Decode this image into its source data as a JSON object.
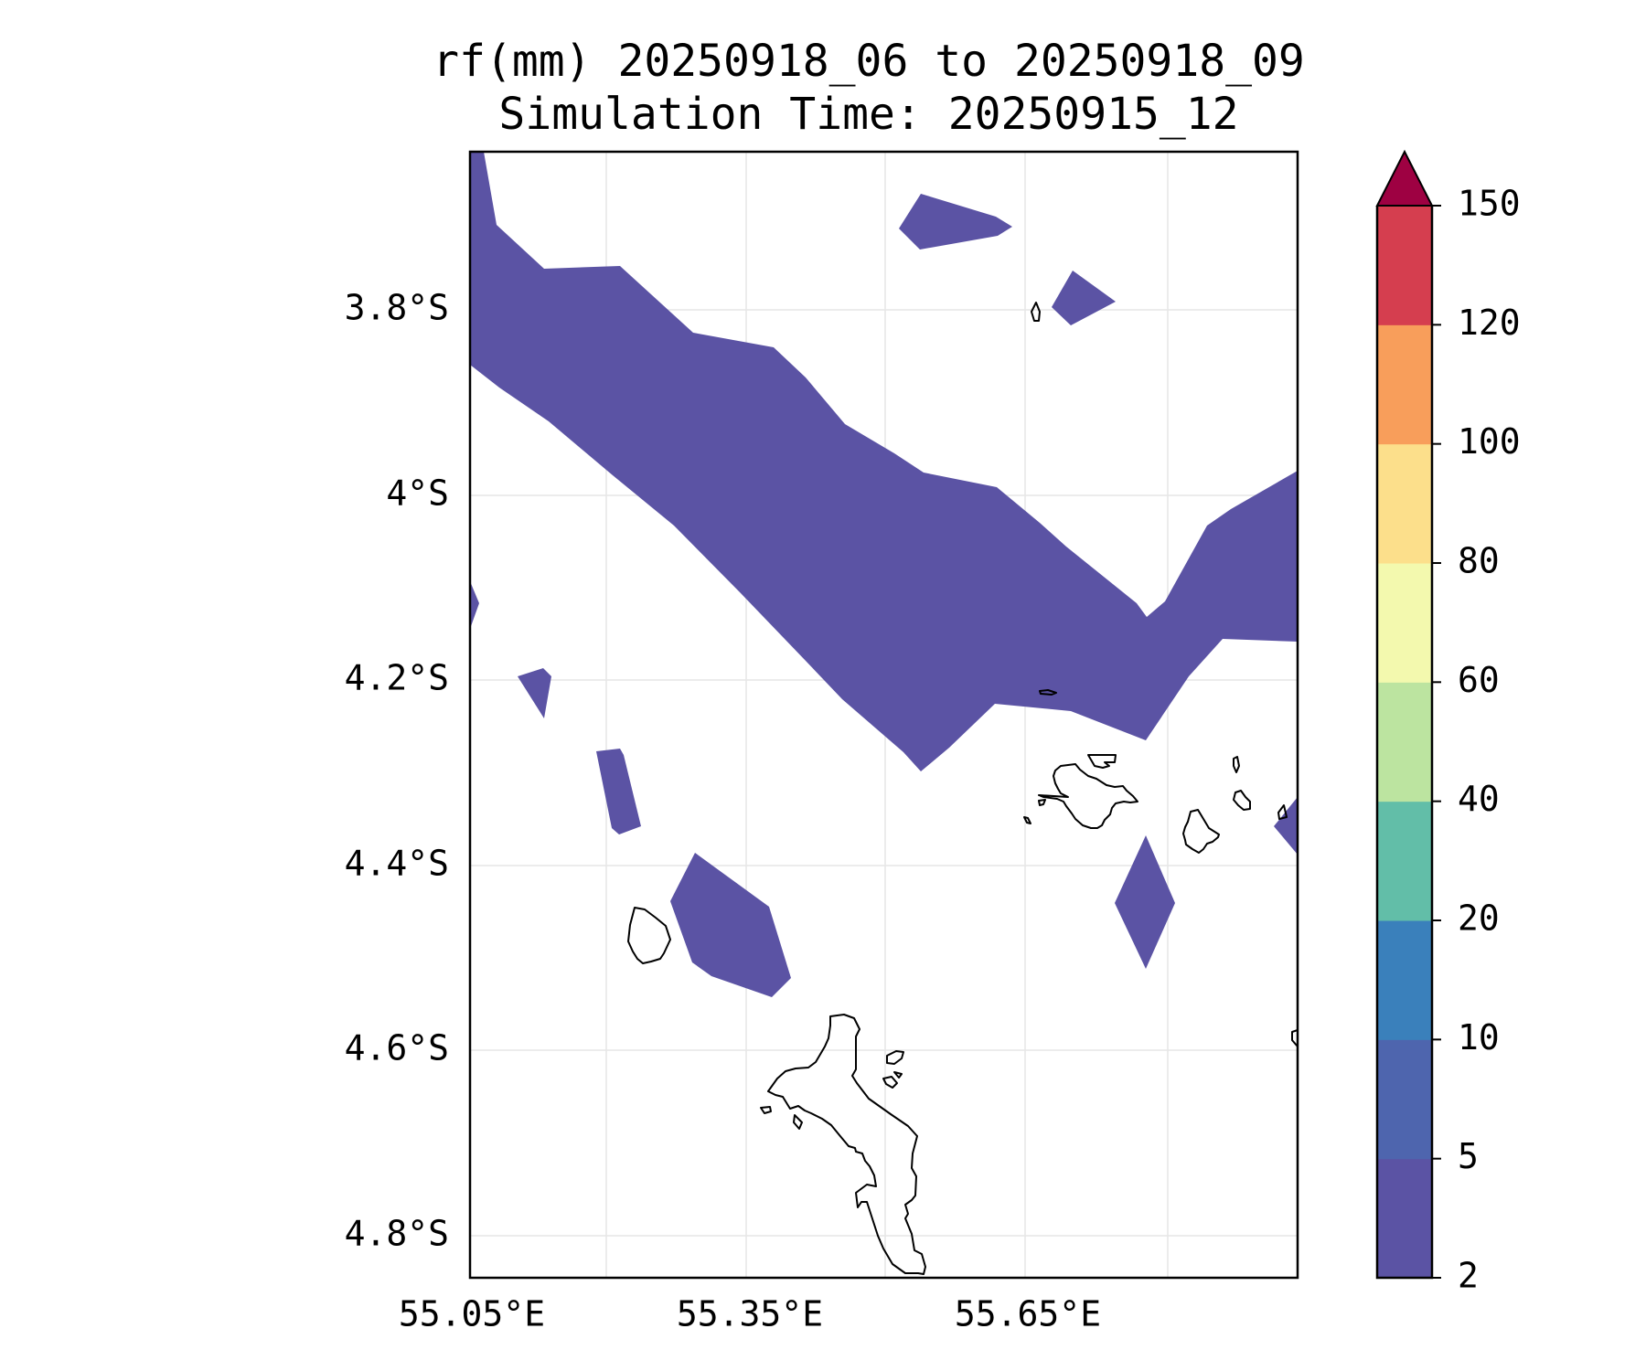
{
  "title": {
    "line1": "rf(mm) 20250918_06 to 20250918_09",
    "line2": "Simulation Time: 20250915_12"
  },
  "axes": {
    "lat_ticks": [
      "3.8°S",
      "4°S",
      "4.2°S",
      "4.4°S",
      "4.6°S",
      "4.8°S"
    ],
    "lon_ticks": [
      "55.05°E",
      "55.35°E",
      "55.65°E"
    ],
    "grid": true
  },
  "colorbar": {
    "levels": [
      "2",
      "5",
      "10",
      "20",
      "40",
      "60",
      "80",
      "100",
      "120",
      "150"
    ],
    "colors": [
      "#5b53a4",
      "#4e65ae",
      "#3a80bb",
      "#62bea8",
      "#bce4a0",
      "#f3f9ae",
      "#fcdf8b",
      "#f89e5b",
      "#d53e4f"
    ],
    "extend_color": "#9e0142",
    "extend": "max"
  },
  "map": {
    "rain_fill": "#5b53a4",
    "coast_color": "#000000"
  }
}
